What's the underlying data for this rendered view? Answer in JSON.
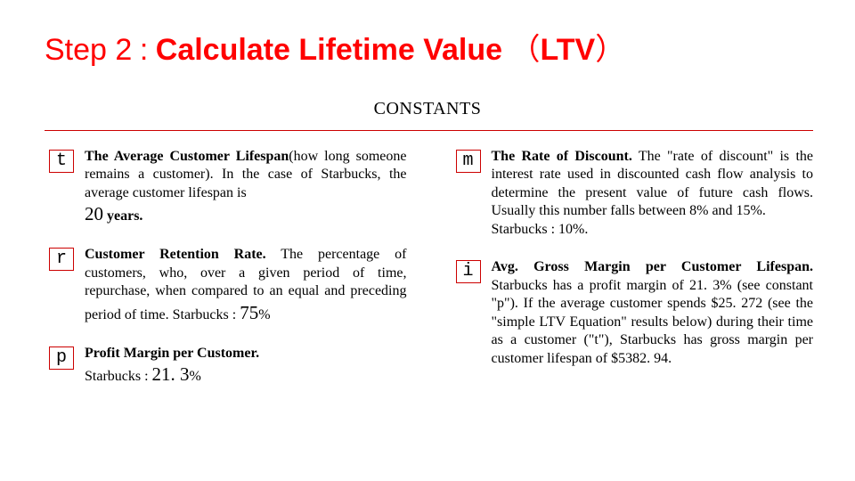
{
  "title": {
    "step_label": "Step 2",
    "colon": ":",
    "main": "Calculate Lifetime Value",
    "paren_open": "（",
    "abbrev": "LTV",
    "paren_close": "）"
  },
  "subhead": "CONSTANTS",
  "colors": {
    "accent": "#ff0000",
    "box_border": "#cc0000",
    "background": "#ffffff",
    "text": "#000000"
  },
  "left": [
    {
      "var": "t",
      "lead_bold": "The Average Customer Lifespan",
      "body1": "(how long someone remains a customer). In the case of Starbucks, the average customer lifespan is ",
      "big": "20",
      "tail": " years."
    },
    {
      "var": "r",
      "lead_bold": "Customer Retention Rate.",
      "body1": " The percentage of customers, who, over a given period of time, repurchase, when compared to an equal and preceding period of time. Starbucks : ",
      "big": "75",
      "tail": "%"
    },
    {
      "var": "p",
      "lead_bold": "Profit Margin per Customer.",
      "body1": " ",
      "pre_big": "Starbucks : ",
      "big": "21. 3",
      "tail": "%"
    }
  ],
  "right": [
    {
      "var": "m",
      "lead_bold": "The Rate of Discount.",
      "body1": " The \"rate of discount\" is the interest rate used in discounted cash flow analysis to determine the present value of future cash flows. Usually this number falls between 8% and 15%.",
      "line2": "Starbucks : 10%."
    },
    {
      "var": "i",
      "lead_bold": "Avg. Gross Margin per Customer Lifespan.",
      "body1": " Starbucks has a profit margin of 21. 3% (see constant \"p\"). If the average customer spends $25. 272 (see the \"simple LTV Equation\" results below) during their time as a customer (\"t\"), Starbucks has gross margin per customer lifespan of $5382. 94."
    }
  ]
}
